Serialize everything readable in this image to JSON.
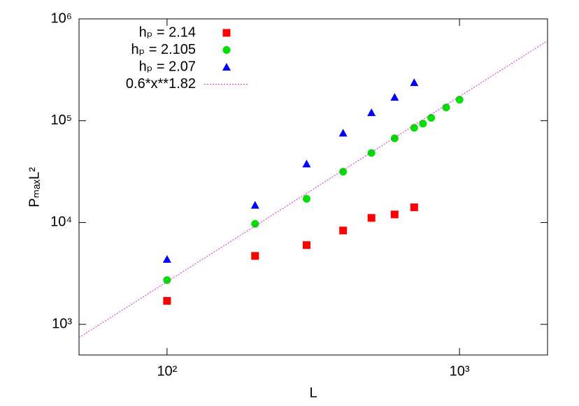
{
  "chart_data": {
    "type": "scatter",
    "xlabel": "L",
    "ylabel": "PₘₐₓL²",
    "xscale": "log",
    "yscale": "log",
    "xlim": [
      50,
      2000
    ],
    "ylim": [
      500,
      1000000
    ],
    "xticks": [
      {
        "value": 100,
        "label": "10²"
      },
      {
        "value": 1000,
        "label": "10³"
      }
    ],
    "yticks": [
      {
        "value": 1000,
        "label": "10³"
      },
      {
        "value": 10000,
        "label": "10⁴"
      },
      {
        "value": 100000,
        "label": "10⁵"
      },
      {
        "value": 1000000,
        "label": "10⁶"
      }
    ],
    "legend": "top-left",
    "series": [
      {
        "name": "hₚ = 2.14",
        "color": "#ff0000",
        "marker": "square",
        "x": [
          100,
          200,
          300,
          400,
          500,
          600,
          700
        ],
        "values": [
          1700,
          4700,
          6000,
          8350,
          11100,
          12000,
          14100
        ]
      },
      {
        "name": "hₚ = 2.105",
        "color": "#00e000",
        "marker": "circle",
        "x": [
          100,
          200,
          300,
          400,
          500,
          600,
          700,
          750,
          800,
          900,
          1000
        ],
        "values": [
          2720,
          9700,
          17100,
          31600,
          48200,
          67200,
          85200,
          93700,
          106600,
          135000,
          161000
        ]
      },
      {
        "name": "hₚ = 2.07",
        "color": "#0000ff",
        "marker": "triangle",
        "x": [
          100,
          200,
          300,
          400,
          500,
          600,
          700
        ],
        "values": [
          4360,
          14800,
          37700,
          75700,
          120000,
          170000,
          237000
        ]
      },
      {
        "name": "0.6*x**1.82",
        "color": "#e020e0",
        "marker": "line",
        "x": [
          50,
          2000
        ],
        "values": [
          742,
          610000
        ]
      }
    ]
  }
}
